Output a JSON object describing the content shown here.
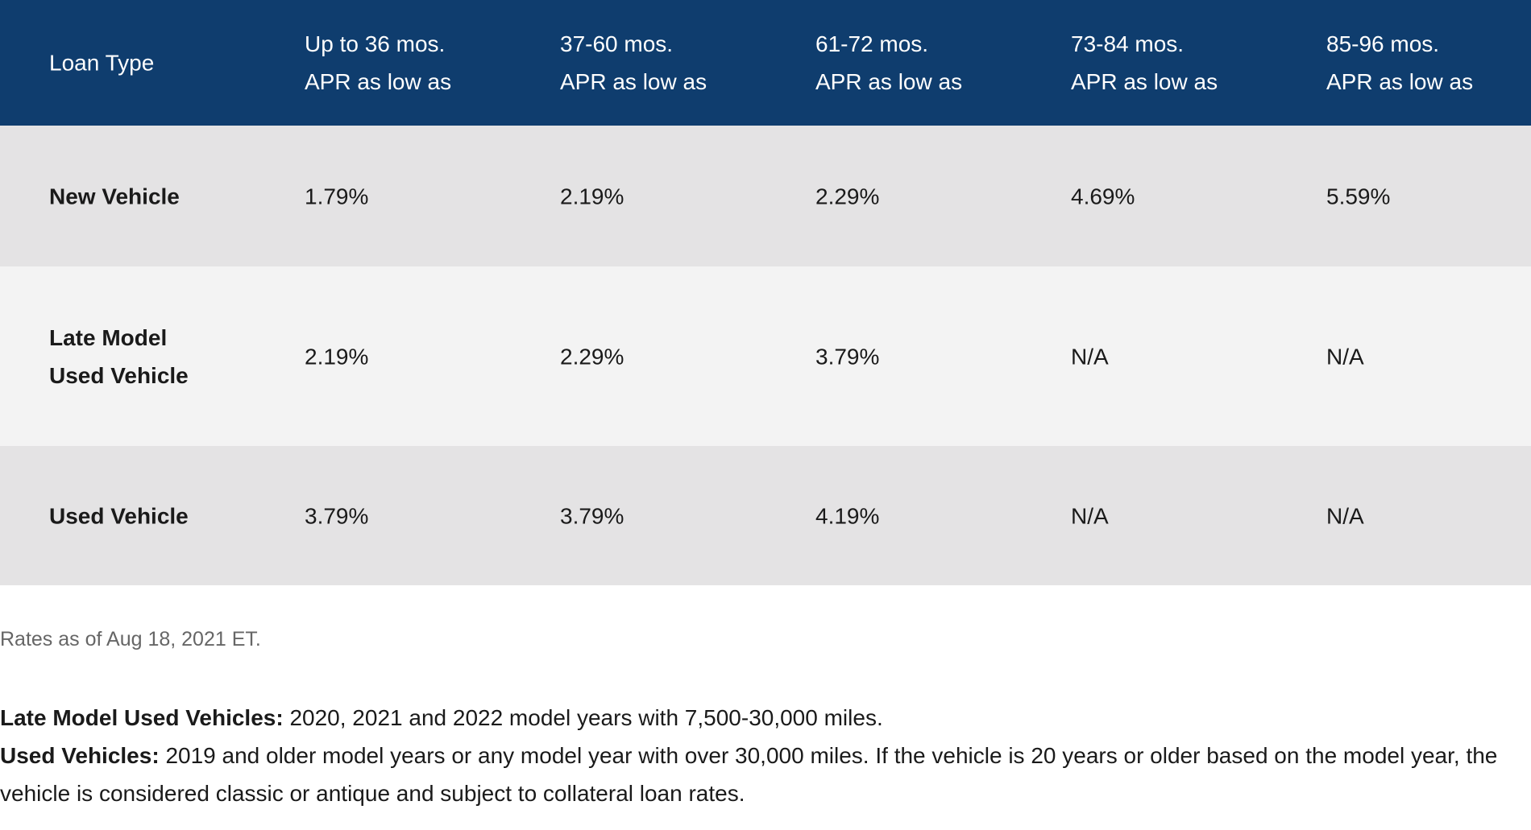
{
  "table": {
    "header": [
      [
        "Loan Type"
      ],
      [
        "Up to 36 mos.",
        "APR as low as"
      ],
      [
        "37-60 mos.",
        "APR as low as"
      ],
      [
        "61-72 mos.",
        "APR as low as"
      ],
      [
        "73-84 mos.",
        "APR as low as"
      ],
      [
        "85-96 mos.",
        "APR as low as"
      ]
    ],
    "rows": [
      {
        "label": [
          "New Vehicle"
        ],
        "cells": [
          "1.79%",
          "2.19%",
          "2.29%",
          "4.69%",
          "5.59%"
        ]
      },
      {
        "label": [
          "Late Model",
          "Used Vehicle"
        ],
        "cells": [
          "2.19%",
          "2.29%",
          "3.79%",
          "N/A",
          "N/A"
        ]
      },
      {
        "label": [
          "Used Vehicle"
        ],
        "cells": [
          "3.79%",
          "3.79%",
          "4.19%",
          "N/A",
          "N/A"
        ]
      }
    ]
  },
  "rates_date": "Rates as of Aug 18, 2021 ET.",
  "notes": [
    {
      "term": "Late Model Used Vehicles:",
      "text": "2020, 2021 and 2022 model years with 7,500-30,000 miles."
    },
    {
      "term": "Used Vehicles:",
      "text": "2019 and older model years or any model year with over 30,000 miles. If the vehicle is 20 years or older based on the model year, the vehicle is considered classic or antique and subject to collateral loan rates."
    }
  ]
}
